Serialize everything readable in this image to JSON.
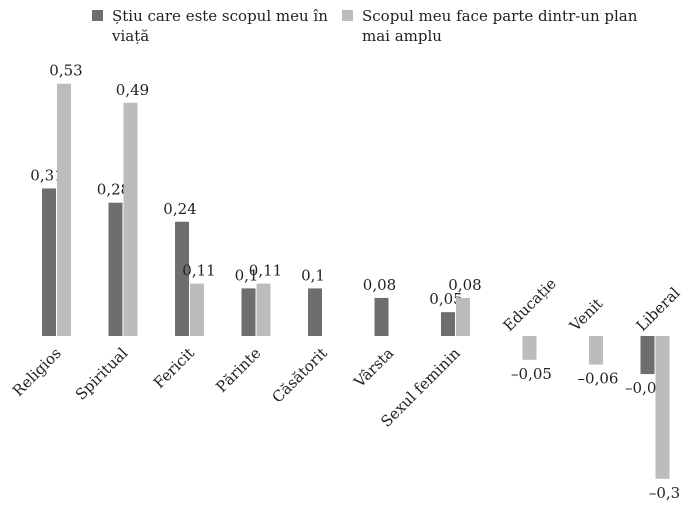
{
  "chart_data": {
    "type": "bar",
    "title": "",
    "xlabel": "",
    "ylabel": "",
    "categories": [
      "Religios",
      "Spiritual",
      "Fericit",
      "Părinte",
      "Căsătorit",
      "Vârsta",
      "Sexul feminin",
      "Educație",
      "Venit",
      "Liberal"
    ],
    "series": [
      {
        "name": "Știu care este scopul meu în viață",
        "color": "#6e6e6e",
        "values": [
          0.31,
          0.28,
          0.24,
          0.1,
          0.1,
          0.08,
          0.05,
          null,
          null,
          -0.08
        ],
        "labels": [
          "0,31",
          "0,28",
          "0,24",
          "0,1",
          "0,1",
          "0,08",
          "0,05",
          "",
          "",
          "–0,08"
        ]
      },
      {
        "name": "Scopul meu face parte dintr-un plan mai amplu",
        "color": "#bcbcbc",
        "values": [
          0.53,
          0.49,
          0.11,
          0.11,
          null,
          null,
          0.08,
          -0.05,
          -0.06,
          -0.3
        ],
        "labels": [
          "0,53",
          "0,49",
          "0,11",
          "0,11",
          "",
          "",
          "0,08",
          "–0,05",
          "–0,06",
          "–0,3"
        ]
      }
    ],
    "ylim": [
      -0.3,
      0.53
    ],
    "grid": false,
    "legend_position": "top"
  }
}
